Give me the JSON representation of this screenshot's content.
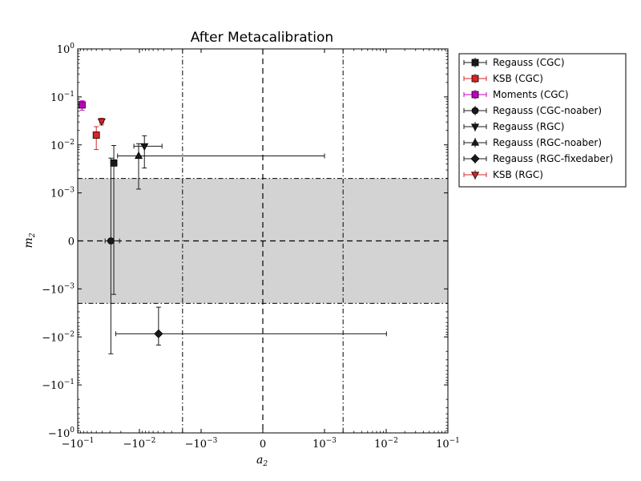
{
  "chart_data": {
    "type": "scatter",
    "title": "After Metacalibration",
    "xlabel": "a",
    "xlabel_sub": "2",
    "ylabel": "m",
    "ylabel_sub": "2",
    "x_scale": "symlog",
    "y_scale": "symlog",
    "xlim": [
      -0.1,
      0.1
    ],
    "ylim": [
      -1,
      1
    ],
    "linear_threshold": 0.001,
    "x_ticks": [
      {
        "value": -0.1,
        "base": "−10",
        "exp": "−1"
      },
      {
        "value": -0.01,
        "base": "−10",
        "exp": "−2"
      },
      {
        "value": -0.001,
        "base": "−10",
        "exp": "−3"
      },
      {
        "value": 0,
        "base": "0",
        "exp": ""
      },
      {
        "value": 0.001,
        "base": "10",
        "exp": "−3"
      },
      {
        "value": 0.01,
        "base": "10",
        "exp": "−2"
      },
      {
        "value": 0.1,
        "base": "10",
        "exp": "−1"
      }
    ],
    "y_ticks": [
      {
        "value": 1,
        "base": "10",
        "exp": "0"
      },
      {
        "value": 0.1,
        "base": "10",
        "exp": "−1"
      },
      {
        "value": 0.01,
        "base": "10",
        "exp": "−2"
      },
      {
        "value": 0.001,
        "base": "10",
        "exp": "−3"
      },
      {
        "value": 0,
        "base": "0",
        "exp": ""
      },
      {
        "value": -0.001,
        "base": "−10",
        "exp": "−3"
      },
      {
        "value": -0.01,
        "base": "−10",
        "exp": "−2"
      },
      {
        "value": -0.1,
        "base": "−10",
        "exp": "−1"
      },
      {
        "value": -1,
        "base": "−10",
        "exp": "0"
      }
    ],
    "requirement_band": {
      "m_min": -0.002,
      "m_max": 0.002,
      "color": "#d3d3d3"
    },
    "requirement_a_lines": [
      -0.002,
      0.002
    ],
    "zero_lines": true,
    "legend_position": "outside-right",
    "series": [
      {
        "name": "Regauss (CGC)",
        "marker": "square",
        "color": "#1a1a1a",
        "x": -0.026,
        "y": 0.0042,
        "xerr": [
          0.0025,
          0.0025
        ],
        "yerr": [
          0.0055,
          0.0055
        ]
      },
      {
        "name": "KSB (CGC)",
        "marker": "square",
        "color": "#d62728",
        "x": -0.05,
        "y": 0.016,
        "xerr": [
          0.004,
          0.004
        ],
        "yerr": [
          0.008,
          0.008
        ]
      },
      {
        "name": "Moments (CGC)",
        "marker": "square",
        "color": "#bf00bf",
        "x": -0.085,
        "y": 0.068,
        "xerr": [
          0.003,
          0.003
        ],
        "yerr": [
          0.015,
          0.015
        ]
      },
      {
        "name": "Regauss (CGC-noaber)",
        "marker": "circle",
        "color": "#1a1a1a",
        "x": -0.029,
        "y": 0.0,
        "xerr": [
          0.007,
          0.008
        ],
        "yerr": [
          0.0225,
          0.0053
        ]
      },
      {
        "name": "Regauss (RGC)",
        "marker": "triangle-down",
        "color": "#1a1a1a",
        "x": -0.0083,
        "y": 0.0094,
        "xerr": [
          0.004,
          0.004
        ],
        "yerr": [
          0.0061,
          0.0061
        ]
      },
      {
        "name": "Regauss (RGC-noaber)",
        "marker": "triangle-up",
        "color": "#1a1a1a",
        "x": -0.0103,
        "y": 0.0059,
        "xerr": [
          0.0123,
          0.0113
        ],
        "yerr": [
          0.0047,
          0.0047
        ]
      },
      {
        "name": "Regauss (RGC-fixedaber)",
        "marker": "diamond",
        "color": "#1a1a1a",
        "x": -0.0049,
        "y": -0.0086,
        "xerr": [
          0.0193,
          0.015
        ],
        "yerr": [
          0.0062,
          0.0062
        ]
      },
      {
        "name": "KSB (RGC)",
        "marker": "triangle-down",
        "color": "#d62728",
        "x": -0.041,
        "y": 0.031,
        "xerr": [
          0.003,
          0.003
        ],
        "yerr": [
          0.005,
          0.005
        ]
      }
    ]
  }
}
